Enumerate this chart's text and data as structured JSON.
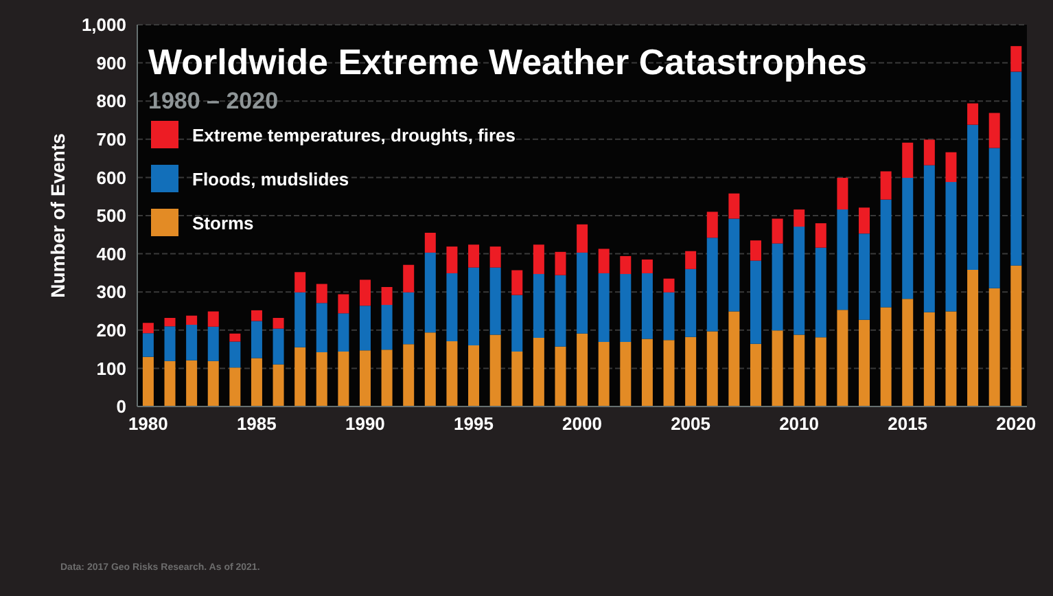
{
  "chart_data": {
    "type": "bar",
    "stacked": true,
    "title": "Worldwide Extreme Weather Catastrophes",
    "subtitle": "1980 – 2020",
    "ylabel": "Number of Events",
    "categories": [
      "1980",
      null,
      null,
      null,
      null,
      "1985",
      null,
      null,
      null,
      null,
      "1990",
      null,
      null,
      null,
      null,
      "1995",
      null,
      null,
      null,
      null,
      "2000",
      null,
      null,
      null,
      null,
      "2005",
      null,
      null,
      null,
      null,
      "2010",
      null,
      null,
      null,
      null,
      "2015",
      null,
      null,
      null,
      null,
      "2020"
    ],
    "series": [
      {
        "name": "Storms",
        "color": "#e38b25",
        "values": [
          130,
          119,
          121,
          119,
          102,
          127,
          110,
          155,
          142,
          144,
          147,
          149,
          163,
          194,
          171,
          160,
          188,
          144,
          180,
          157,
          191,
          169,
          169,
          177,
          174,
          182,
          197,
          249,
          164,
          199,
          188,
          181,
          253,
          227,
          260,
          282,
          247,
          249,
          358,
          310,
          369
        ]
      },
      {
        "name": "Floods, mudslides",
        "color": "#126fba",
        "values": [
          62,
          91,
          93,
          90,
          68,
          97,
          94,
          144,
          129,
          100,
          117,
          117,
          136,
          209,
          178,
          204,
          176,
          148,
          167,
          187,
          212,
          180,
          178,
          172,
          125,
          178,
          245,
          243,
          218,
          228,
          283,
          235,
          263,
          226,
          282,
          317,
          385,
          339,
          380,
          367,
          508
        ]
      },
      {
        "name": "Extreme temperatures, droughts, fires",
        "color": "#ed1c24",
        "values": [
          27,
          22,
          24,
          40,
          21,
          28,
          28,
          53,
          50,
          50,
          68,
          47,
          72,
          52,
          70,
          60,
          55,
          65,
          77,
          61,
          74,
          64,
          47,
          36,
          36,
          47,
          68,
          66,
          53,
          65,
          45,
          64,
          83,
          68,
          74,
          92,
          67,
          78,
          56,
          92,
          67
        ]
      }
    ],
    "ylim": [
      0,
      1000
    ],
    "yticks": [
      0,
      100,
      200,
      300,
      400,
      500,
      600,
      700,
      800,
      900,
      {
        "value": 1000,
        "label": "1,000"
      }
    ],
    "grid": "y",
    "legend": "top left",
    "annotations": [
      "Data: 2017 Geo Risks Research. As of 2021."
    ]
  }
}
